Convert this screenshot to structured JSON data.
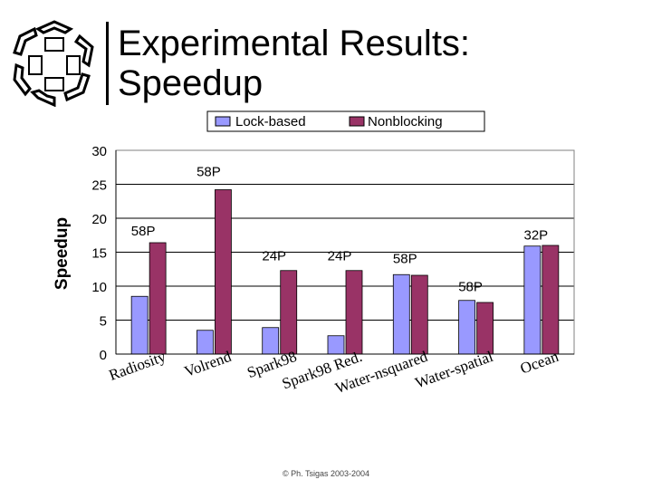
{
  "slide": {
    "title_lines": [
      "Experimental Results:",
      "Speedup"
    ],
    "footer": "© Ph. Tsigas 2003-2004"
  },
  "chart_data": {
    "type": "bar",
    "title": "",
    "ylabel": "Speedup",
    "xlabel": "",
    "ylim": [
      0,
      30
    ],
    "yticks": [
      0,
      5,
      10,
      15,
      20,
      25,
      30
    ],
    "grid": true,
    "legend_position": "top",
    "categories": [
      "Radiosity",
      "Volrend",
      "Spark98",
      "Spark98 Red.",
      "Water-nsquared",
      "Water-spatial",
      "Ocean"
    ],
    "series": [
      {
        "name": "Lock-based",
        "color": "#9999ff",
        "values": [
          8.5,
          3.5,
          3.9,
          2.7,
          11.7,
          7.9,
          15.9
        ]
      },
      {
        "name": "Nonblocking",
        "color": "#993366",
        "values": [
          16.4,
          24.2,
          12.3,
          12.3,
          11.6,
          7.6,
          16.0
        ]
      }
    ],
    "annotations": [
      {
        "text": "58P",
        "category": 0,
        "y": 17.5
      },
      {
        "text": "58P",
        "category": 1,
        "y": 26.2
      },
      {
        "text": "24P",
        "category": 2,
        "y": 13.8
      },
      {
        "text": "24P",
        "category": 3,
        "y": 13.8
      },
      {
        "text": "58P",
        "category": 4,
        "y": 13.4
      },
      {
        "text": "58P",
        "category": 5,
        "y": 9.3
      },
      {
        "text": "32P",
        "category": 6,
        "y": 16.9
      }
    ],
    "colors": {
      "plot_background": "#ffffff",
      "gridline": "#000000",
      "frame": "#808080"
    }
  }
}
